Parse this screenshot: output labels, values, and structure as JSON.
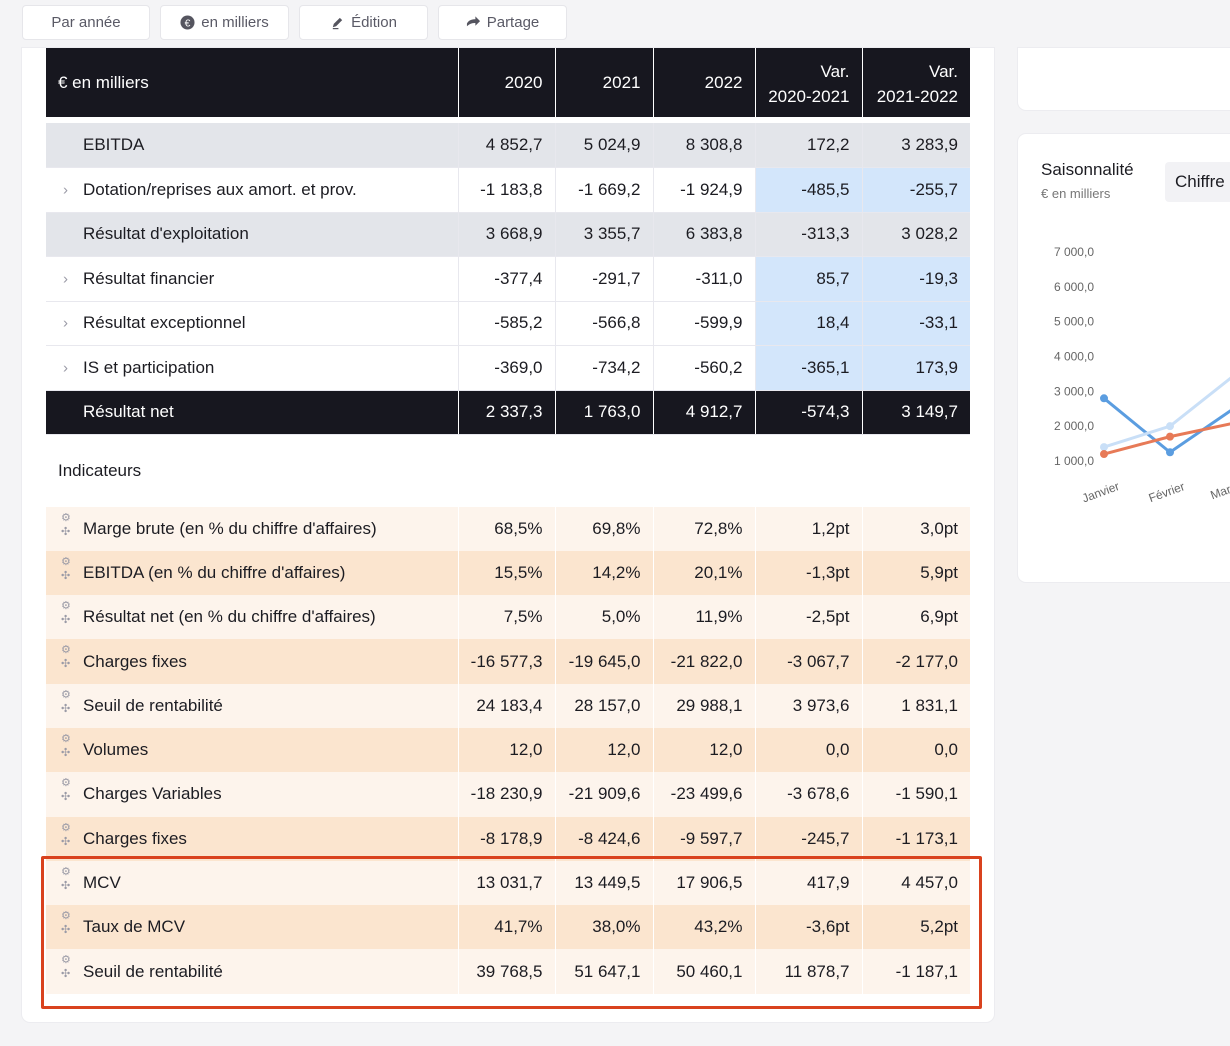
{
  "toolbar": {
    "buttons": [
      {
        "label": "Par année",
        "icon": ""
      },
      {
        "label": "en milliers",
        "icon": "euro-icon"
      },
      {
        "label": "Édition",
        "icon": "pencil-icon"
      },
      {
        "label": "Partage",
        "icon": "share-icon"
      }
    ]
  },
  "table": {
    "header": {
      "label": "€ en milliers",
      "y2020": "2020",
      "y2021": "2021",
      "y2022": "2022",
      "var1_line1": "Var.",
      "var1_line2": "2020-2021",
      "var2_line1": "Var.",
      "var2_line2": "2021-2022"
    },
    "rows": [
      {
        "label": "EBITDA",
        "v2020": "4 852,7",
        "v2021": "5 024,9",
        "v2022": "8 308,8",
        "var1": "172,2",
        "var2": "3 283,9"
      },
      {
        "label": "Dotation/reprises aux amort. et prov.",
        "v2020": "-1 183,8",
        "v2021": "-1 669,2",
        "v2022": "-1 924,9",
        "var1": "-485,5",
        "var2": "-255,7"
      },
      {
        "label": "Résultat d'exploitation",
        "v2020": "3 668,9",
        "v2021": "3 355,7",
        "v2022": "6 383,8",
        "var1": "-313,3",
        "var2": "3 028,2"
      },
      {
        "label": "Résultat financier",
        "v2020": "-377,4",
        "v2021": "-291,7",
        "v2022": "-311,0",
        "var1": "85,7",
        "var2": "-19,3"
      },
      {
        "label": "Résultat exceptionnel",
        "v2020": "-585,2",
        "v2021": "-566,8",
        "v2022": "-599,9",
        "var1": "18,4",
        "var2": "-33,1"
      },
      {
        "label": "IS et participation",
        "v2020": "-369,0",
        "v2021": "-734,2",
        "v2022": "-560,2",
        "var1": "-365,1",
        "var2": "173,9"
      },
      {
        "label": "Résultat net",
        "v2020": "2 337,3",
        "v2021": "1 763,0",
        "v2022": "4 912,7",
        "var1": "-574,3",
        "var2": "3 149,7"
      }
    ],
    "indicators_title": "Indicateurs",
    "indicators": [
      {
        "label": "Marge brute (en % du chiffre d'affaires)",
        "v2020": "68,5%",
        "v2021": "69,8%",
        "v2022": "72,8%",
        "var1": "1,2pt",
        "var2": "3,0pt"
      },
      {
        "label": "EBITDA (en % du chiffre d'affaires)",
        "v2020": "15,5%",
        "v2021": "14,2%",
        "v2022": "20,1%",
        "var1": "-1,3pt",
        "var2": "5,9pt"
      },
      {
        "label": "Résultat net (en % du chiffre d'affaires)",
        "v2020": "7,5%",
        "v2021": "5,0%",
        "v2022": "11,9%",
        "var1": "-2,5pt",
        "var2": "6,9pt"
      },
      {
        "label": "Charges fixes",
        "v2020": "-16 577,3",
        "v2021": "-19 645,0",
        "v2022": "-21 822,0",
        "var1": "-3 067,7",
        "var2": "-2 177,0"
      },
      {
        "label": "Seuil de rentabilité",
        "v2020": "24 183,4",
        "v2021": "28 157,0",
        "v2022": "29 988,1",
        "var1": "3 973,6",
        "var2": "1 831,1"
      },
      {
        "label": "Volumes",
        "v2020": "12,0",
        "v2021": "12,0",
        "v2022": "12,0",
        "var1": "0,0",
        "var2": "0,0"
      },
      {
        "label": "Charges Variables",
        "v2020": "-18 230,9",
        "v2021": "-21 909,6",
        "v2022": "-23 499,6",
        "var1": "-3 678,6",
        "var2": "-1 590,1"
      },
      {
        "label": "Charges fixes",
        "v2020": "-8 178,9",
        "v2021": "-8 424,6",
        "v2022": "-9 597,7",
        "var1": "-245,7",
        "var2": "-1 173,1"
      },
      {
        "label": "MCV",
        "v2020": "13 031,7",
        "v2021": "13 449,5",
        "v2022": "17 906,5",
        "var1": "417,9",
        "var2": "4 457,0"
      },
      {
        "label": "Taux de MCV",
        "v2020": "41,7%",
        "v2021": "38,0%",
        "v2022": "43,2%",
        "var1": "-3,6pt",
        "var2": "5,2pt"
      },
      {
        "label": "Seuil de rentabilité",
        "v2020": "39 768,5",
        "v2021": "51 647,1",
        "v2022": "50 460,1",
        "var1": "11 878,7",
        "var2": "-1 187,1"
      }
    ]
  },
  "side": {
    "title": "Saisonnalité",
    "subtitle": "€ en milliers",
    "select": "Chiffre",
    "chart_data": {
      "type": "line",
      "categories": [
        "Janvier",
        "Février",
        "Mar"
      ],
      "yticks": [
        "7 000,0",
        "6 000,0",
        "5 000,0",
        "4 000,0",
        "3 000,0",
        "2 000,0",
        "1 000,0"
      ],
      "ylim": [
        1000,
        7000
      ],
      "series": [
        {
          "color": "#5b9de0",
          "values": [
            2800,
            1250,
            2550
          ]
        },
        {
          "color": "#c9dff7",
          "values": [
            1400,
            2000,
            3500
          ]
        },
        {
          "color": "#e77a57",
          "values": [
            1200,
            1700,
            2100
          ]
        }
      ]
    }
  }
}
